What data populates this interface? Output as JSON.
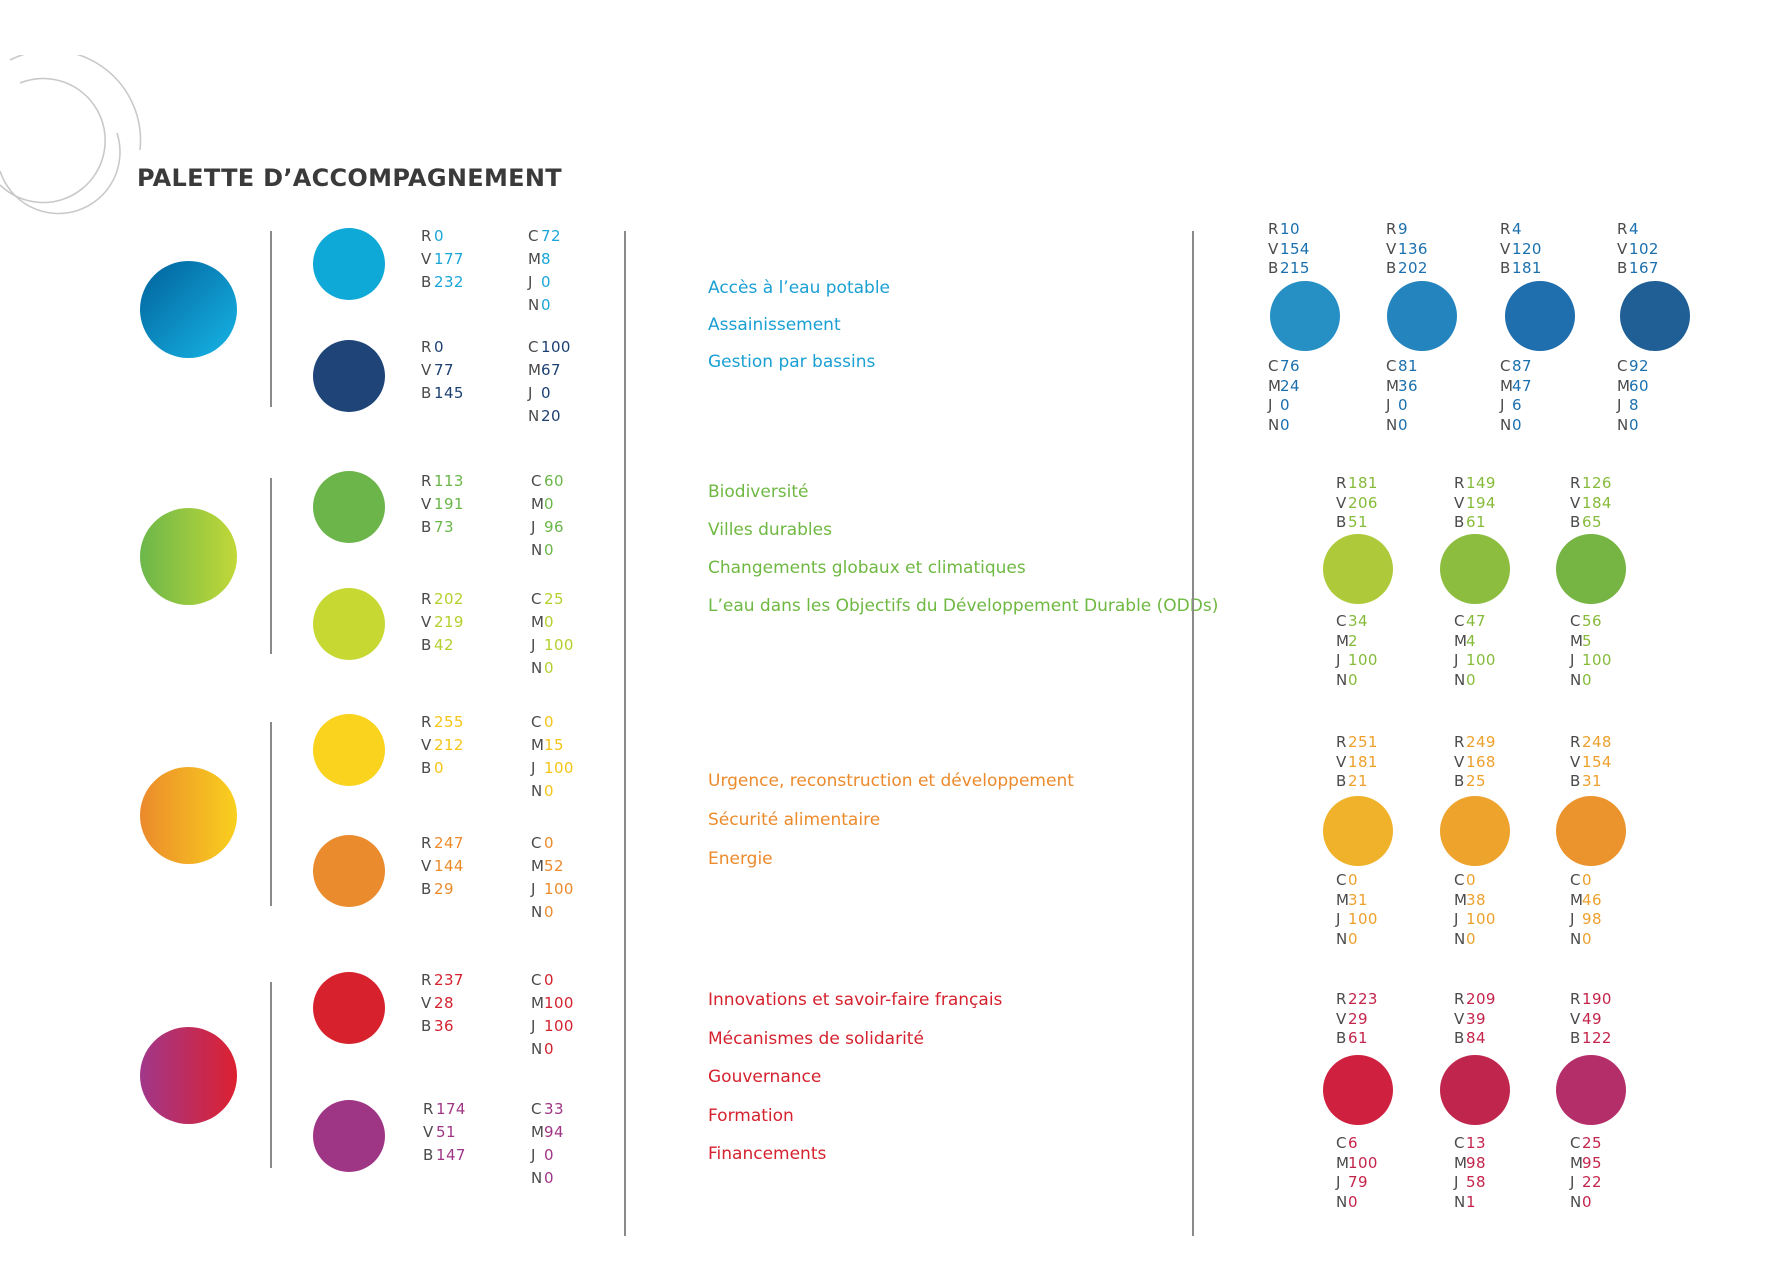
{
  "title": "PALETTE D’ACCOMPAGNEMENT",
  "groups": [
    {
      "color": "#1a8fc6",
      "gradient": [
        "#00619b",
        "#14a9db"
      ],
      "topic_color": "#1aa0d4",
      "swatches": [
        {
          "hex": "#0fa9d8",
          "rvb": [
            "0",
            "177",
            "232"
          ],
          "cmjn": [
            "72",
            "8",
            "0",
            "0"
          ],
          "text_color": "#1aa5d8"
        },
        {
          "hex": "#1e4478",
          "rvb": [
            "0",
            "77",
            "145"
          ],
          "cmjn": [
            "100",
            "67",
            "0",
            "20"
          ],
          "text_color": "#1c3f72"
        }
      ],
      "topics": [
        "Accès à l’eau potable",
        "Assainissement",
        "Gestion par bassins"
      ],
      "shades": [
        {
          "hex": "#2690c5",
          "rvb": [
            "10",
            "154",
            "215"
          ],
          "cmjn": [
            "76",
            "24",
            "0",
            "0"
          ]
        },
        {
          "hex": "#2484be",
          "rvb": [
            "9",
            "136",
            "202"
          ],
          "cmjn": [
            "81",
            "36",
            "0",
            "0"
          ]
        },
        {
          "hex": "#1f6ead",
          "rvb": [
            "4",
            "120",
            "181"
          ],
          "cmjn": [
            "87",
            "47",
            "6",
            "0"
          ]
        },
        {
          "hex": "#205f96",
          "rvb": [
            "4",
            "102",
            "167"
          ],
          "cmjn": [
            "92",
            "60",
            "8",
            "0"
          ]
        }
      ],
      "shade_text_color": "#1a6fae"
    },
    {
      "color": "#8dc63f",
      "gradient": [
        "#6cb74a",
        "#c2d838"
      ],
      "topic_color": "#6fb842",
      "swatches": [
        {
          "hex": "#6bb54b",
          "rvb": [
            "113",
            "191",
            "73"
          ],
          "cmjn": [
            "60",
            "0",
            "96",
            "0"
          ],
          "text_color": "#6ab64a"
        },
        {
          "hex": "#c6d831",
          "rvb": [
            "202",
            "219",
            "42"
          ],
          "cmjn": [
            "25",
            "0",
            "100",
            "0"
          ],
          "text_color": "#b6cf2e"
        }
      ],
      "topics": [
        "Biodiversité",
        "Villes durables",
        "Changements globaux et climatiques",
        "L’eau dans les Objectifs du Développement Durable (ODDs)"
      ],
      "shades": [
        {
          "hex": "#aec93a",
          "rvb": [
            "181",
            "206",
            "51"
          ],
          "cmjn": [
            "34",
            "2",
            "100",
            "0"
          ]
        },
        {
          "hex": "#8cbd3f",
          "rvb": [
            "149",
            "194",
            "61"
          ],
          "cmjn": [
            "47",
            "4",
            "100",
            "0"
          ]
        },
        {
          "hex": "#76b443",
          "rvb": [
            "126",
            "184",
            "65"
          ],
          "cmjn": [
            "56",
            "5",
            "100",
            "0"
          ]
        }
      ],
      "shade_text_color": "#86bb3a"
    },
    {
      "color": "#f2a52a",
      "gradient": [
        "#eb8a2c",
        "#f9d01e"
      ],
      "topic_color": "#ec8a2c",
      "swatches": [
        {
          "hex": "#fad31e",
          "rvb": [
            "255",
            "212",
            "0"
          ],
          "cmjn": [
            "0",
            "15",
            "100",
            "0"
          ],
          "text_color": "#f5c518"
        },
        {
          "hex": "#ea8b2e",
          "rvb": [
            "247",
            "144",
            "29"
          ],
          "cmjn": [
            "0",
            "52",
            "100",
            "0"
          ],
          "text_color": "#ec8b2c"
        }
      ],
      "topics": [
        "Urgence, reconstruction et développement",
        "Sécurité alimentaire",
        "Energie"
      ],
      "shades": [
        {
          "hex": "#f0b22a",
          "rvb": [
            "251",
            "181",
            "21"
          ],
          "cmjn": [
            "0",
            "31",
            "100",
            "0"
          ]
        },
        {
          "hex": "#eda32c",
          "rvb": [
            "249",
            "168",
            "25"
          ],
          "cmjn": [
            "0",
            "38",
            "100",
            "0"
          ]
        },
        {
          "hex": "#eb932d",
          "rvb": [
            "248",
            "154",
            "31"
          ],
          "cmjn": [
            "0",
            "46",
            "98",
            "0"
          ]
        }
      ],
      "shade_text_color": "#eea02c"
    },
    {
      "color": "#c52a56",
      "gradient": [
        "#a1378a",
        "#dc2130"
      ],
      "topic_color": "#d5222e",
      "swatches": [
        {
          "hex": "#d7222d",
          "rvb": [
            "237",
            "28",
            "36"
          ],
          "cmjn": [
            "0",
            "100",
            "100",
            "0"
          ],
          "text_color": "#d3222e"
        },
        {
          "hex": "#9f3585",
          "rvb": [
            "174",
            "51",
            "147"
          ],
          "cmjn": [
            "33",
            "94",
            "0",
            "0"
          ],
          "text_color": "#9f3585"
        }
      ],
      "topics": [
        "Innovations et savoir-faire français",
        "Mécanismes de solidarité",
        "Gouvernance",
        "Formation",
        "Financements"
      ],
      "shades": [
        {
          "hex": "#d0203f",
          "rvb": [
            "223",
            "29",
            "61"
          ],
          "cmjn": [
            "6",
            "100",
            "79",
            "0"
          ]
        },
        {
          "hex": "#c0264d",
          "rvb": [
            "209",
            "39",
            "84"
          ],
          "cmjn": [
            "13",
            "98",
            "58",
            "1"
          ]
        },
        {
          "hex": "#b42e6a",
          "rvb": [
            "190",
            "49",
            "122"
          ],
          "cmjn": [
            "25",
            "95",
            "22",
            "0"
          ]
        }
      ],
      "shade_text_color": "#c4244a"
    }
  ],
  "labels": {
    "rvb_keys": [
      "R",
      "V",
      "B"
    ],
    "cmjn_keys": [
      "C",
      "M",
      "J",
      "N"
    ]
  }
}
